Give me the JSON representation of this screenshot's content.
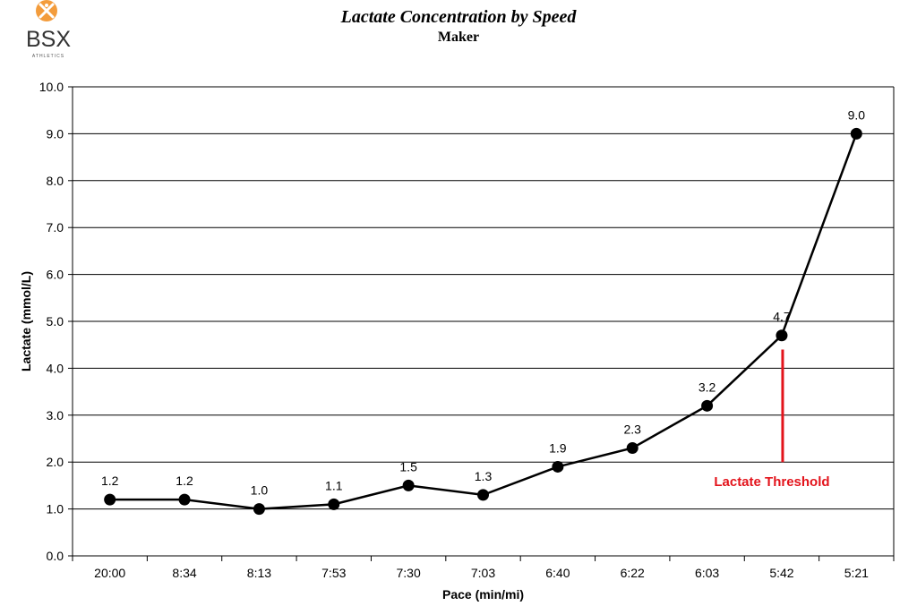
{
  "logo": {
    "text": "BSX",
    "subtext": "ATHLETICS",
    "accent_color": "#f39c3c"
  },
  "chart_data": {
    "type": "line",
    "title": "Lactate Concentration by Speed",
    "subtitle": "Maker",
    "xlabel": "Pace (min/mi)",
    "ylabel": "Lactate (mmol/L)",
    "categories": [
      "20:00",
      "8:34",
      "8:13",
      "7:53",
      "7:30",
      "7:03",
      "6:40",
      "6:22",
      "6:03",
      "5:42",
      "5:21"
    ],
    "values": [
      1.2,
      1.2,
      1.0,
      1.1,
      1.5,
      1.3,
      1.9,
      2.3,
      3.2,
      4.7,
      9.0
    ],
    "data_labels": [
      "1.2",
      "1.2",
      "1.0",
      "1.1",
      "1.5",
      "1.3",
      "1.9",
      "2.3",
      "3.2",
      "4.7",
      "9.0"
    ],
    "ylim": [
      0,
      10
    ],
    "yticks": [
      "0.0",
      "1.0",
      "2.0",
      "3.0",
      "4.0",
      "5.0",
      "6.0",
      "7.0",
      "8.0",
      "9.0",
      "10.0"
    ],
    "grid": "horizontal",
    "line_color": "#000000",
    "annotation": {
      "text": "Lactate Threshold",
      "category": "5:42",
      "y_from": 0.0,
      "y_to": 4.4,
      "color": "#e3141c"
    }
  }
}
